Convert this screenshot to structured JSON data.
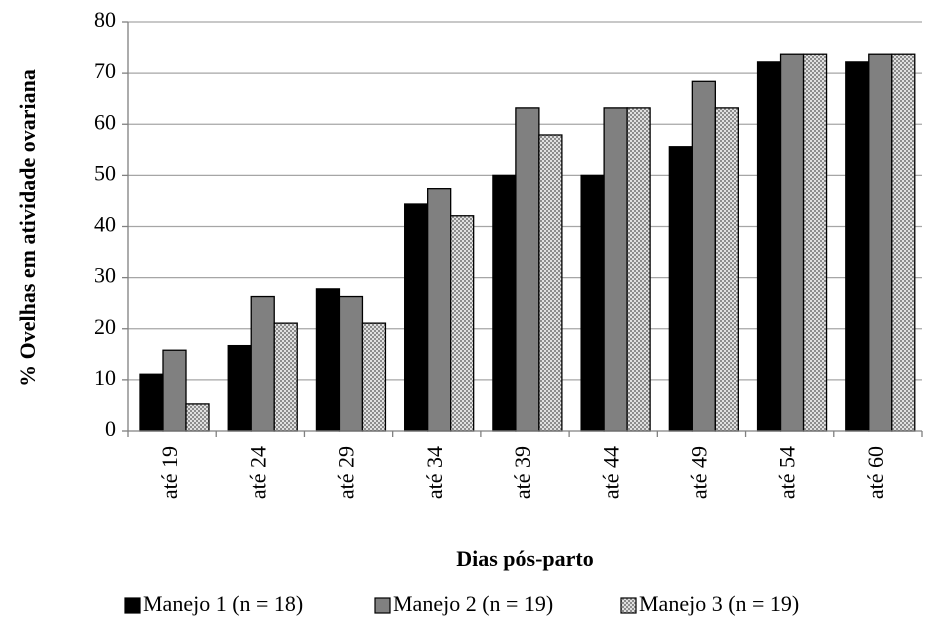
{
  "chart_data": {
    "type": "bar",
    "title": "",
    "xlabel": "Dias pós-parto",
    "ylabel": "% Ovelhas em atividade ovariana",
    "categories": [
      "até 19",
      "até 24",
      "até 29",
      "até 34",
      "até 39",
      "até 44",
      "até 49",
      "até 54",
      "até 60"
    ],
    "ylim": [
      0,
      80
    ],
    "yticks": [
      0,
      10,
      20,
      30,
      40,
      50,
      60,
      70,
      80
    ],
    "grid": true,
    "legend_position": "bottom",
    "series": [
      {
        "name": "Manejo 1 (n = 18)",
        "color": "#000000",
        "pattern": "solid",
        "values": [
          11.1,
          16.7,
          27.8,
          44.4,
          50.0,
          50.0,
          55.6,
          72.2,
          72.2
        ]
      },
      {
        "name": "Manejo 2 (n = 19)",
        "color": "#808080",
        "pattern": "solid",
        "values": [
          15.8,
          26.3,
          26.3,
          47.4,
          63.2,
          63.2,
          68.4,
          73.7,
          73.7
        ]
      },
      {
        "name": "Manejo 3 (n = 19)",
        "color": "#bfbfbf",
        "pattern": "checkered",
        "values": [
          5.3,
          21.1,
          21.1,
          42.1,
          57.9,
          63.2,
          63.2,
          73.7,
          73.7
        ]
      }
    ]
  }
}
